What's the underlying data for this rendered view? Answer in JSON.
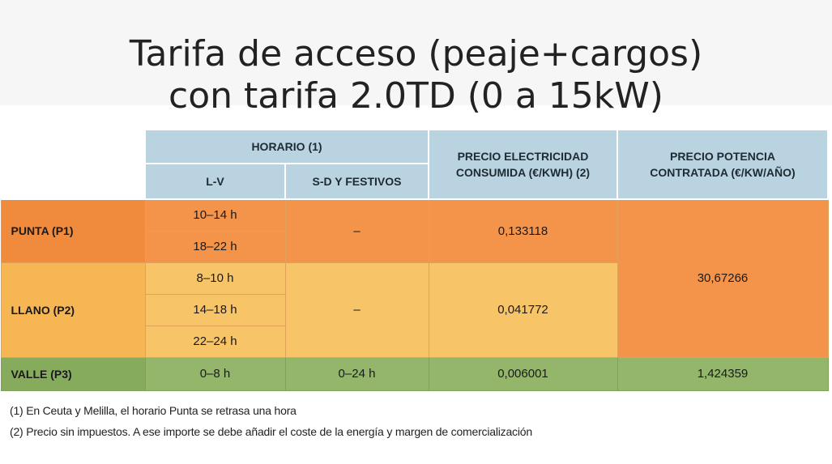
{
  "title": {
    "line1": "Tarifa de acceso (peaje+cargos)",
    "line2": "con tarifa 2.0TD (0 a 15kW)"
  },
  "table": {
    "headers": {
      "horario": "HORARIO (1)",
      "lv": "L-V",
      "sd": "S-D Y FESTIVOS",
      "precio_elec_line1": "PRECIO ELECTRICIDAD",
      "precio_elec_line2": "CONSUMIDA (€/KWH) (2)",
      "precio_pot_line1": "PRECIO POTENCIA",
      "precio_pot_line2": "CONTRATADA (€/KW/AÑO)"
    },
    "p1": {
      "label": "PUNTA (P1)",
      "lv": [
        "10–14 h",
        "18–22 h"
      ],
      "sd": "–",
      "energy": "0,133118"
    },
    "p2": {
      "label": "LLANO (P2)",
      "lv": [
        "8–10 h",
        "14–18 h",
        "22–24 h"
      ],
      "sd": "–",
      "energy": "0,041772"
    },
    "power_p1_p2": "30,67266",
    "p3": {
      "label": "VALLE (P3)",
      "lv": "0–8 h",
      "sd": "0–24 h",
      "energy": "0,006001",
      "power": "1,424359"
    }
  },
  "notes": [
    "(1) En Ceuta y Melilla, el horario Punta se retrasa una hora",
    "(2) Precio sin impuestos. A ese importe se debe añadir el coste de la energía y margen de comercialización"
  ],
  "colors": {
    "header": "#b9d4e0",
    "punta": "#f4944a",
    "llano": "#f8c468",
    "valle": "#93b66a"
  }
}
